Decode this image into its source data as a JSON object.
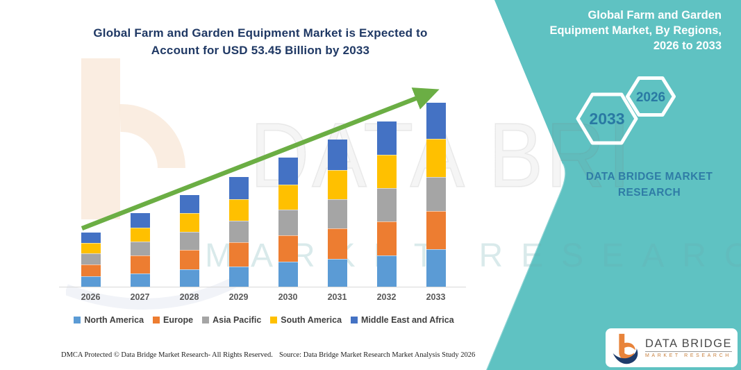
{
  "page": {
    "title": "Global Farm and Garden Equipment Market is Expected to Account for USD 53.45 Billion by 2033"
  },
  "side_panel": {
    "heading": "Global Farm and Garden Equipment Market, By Regions, 2026 to 2033",
    "hexagon_labels": {
      "large": "2033",
      "small": "2026"
    },
    "brand_text": "DATA BRIDGE MARKET RESEARCH",
    "band_color": "#5FC2C2",
    "accent_text_color": "#2979A3"
  },
  "logo": {
    "title": "DATA BRIDGE",
    "subtitle": "MARKET RESEARCH"
  },
  "watermarks": {
    "big_text": "DATA BRI",
    "sub_text": "MARKET RESEARCH"
  },
  "footer": {
    "dmca": "DMCA Protected © Data Bridge Market Research-  All Rights Reserved.",
    "source": "Source: Data Bridge Market Research  Market Analysis Study 2026"
  },
  "chart_data": {
    "type": "bar",
    "stacked": true,
    "title": "Global Farm and Garden Equipment Market, By Regions, 2026 to 2033",
    "unit": "USD Billion (estimated from 2033 total of 53.45; no value axis shown)",
    "categories": [
      "2026",
      "2027",
      "2028",
      "2029",
      "2030",
      "2031",
      "2032",
      "2033"
    ],
    "series": [
      {
        "name": "North America",
        "color": "#5B9BD5",
        "values": [
          3.1,
          3.9,
          5.0,
          5.8,
          7.3,
          8.0,
          9.1,
          10.9
        ]
      },
      {
        "name": "Europe",
        "color": "#ED7D31",
        "values": [
          3.4,
          5.2,
          5.7,
          7.0,
          7.7,
          8.9,
          9.9,
          11.0
        ]
      },
      {
        "name": "Asia Pacific",
        "color": "#A5A5A5",
        "values": [
          3.1,
          3.9,
          5.3,
          6.3,
          7.4,
          8.5,
          9.6,
          9.9
        ]
      },
      {
        "name": "South America",
        "color": "#FFC000",
        "values": [
          3.0,
          4.2,
          5.3,
          6.2,
          7.3,
          8.4,
          9.6,
          11.0
        ]
      },
      {
        "name": "Middle East and Africa",
        "color": "#4472C4",
        "values": [
          3.2,
          4.2,
          5.3,
          6.6,
          7.7,
          8.8,
          9.8,
          10.65
        ]
      }
    ],
    "totals": [
      15.8,
      21.4,
      26.6,
      31.9,
      37.4,
      42.6,
      48.0,
      53.45
    ],
    "xlabel": "",
    "ylabel": "",
    "ylim": [
      0,
      60
    ],
    "gridlines": false,
    "legend_position": "bottom",
    "trend_arrow": true,
    "trend_arrow_color": "#6BAE44"
  }
}
